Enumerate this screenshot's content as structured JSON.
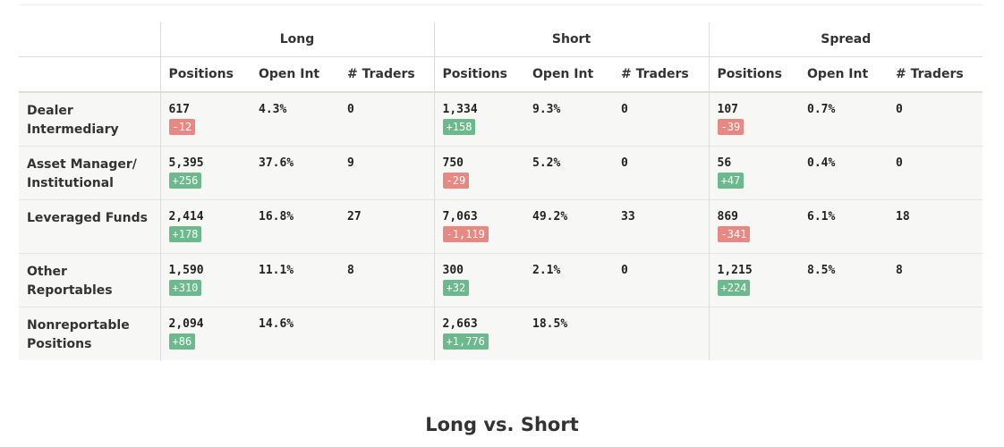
{
  "table": {
    "groups": [
      "Long",
      "Short",
      "Spread"
    ],
    "columns": [
      "Positions",
      "Open Int",
      "# Traders"
    ],
    "rows": [
      {
        "label": "Dealer Intermediary",
        "cells": [
          {
            "positions": "617",
            "change": "-12",
            "open_int": "4.3%",
            "traders": "0"
          },
          {
            "positions": "1,334",
            "change": "+158",
            "open_int": "9.3%",
            "traders": "0"
          },
          {
            "positions": "107",
            "change": "-39",
            "open_int": "0.7%",
            "traders": "0"
          }
        ]
      },
      {
        "label": "Asset Manager/ Institutional",
        "cells": [
          {
            "positions": "5,395",
            "change": "+256",
            "open_int": "37.6%",
            "traders": "9"
          },
          {
            "positions": "750",
            "change": "-29",
            "open_int": "5.2%",
            "traders": "0"
          },
          {
            "positions": "56",
            "change": "+47",
            "open_int": "0.4%",
            "traders": "0"
          }
        ]
      },
      {
        "label": "Leveraged Funds",
        "cells": [
          {
            "positions": "2,414",
            "change": "+178",
            "open_int": "16.8%",
            "traders": "27"
          },
          {
            "positions": "7,063",
            "change": "-1,119",
            "open_int": "49.2%",
            "traders": "33"
          },
          {
            "positions": "869",
            "change": "-341",
            "open_int": "6.1%",
            "traders": "18"
          }
        ]
      },
      {
        "label": "Other Reportables",
        "cells": [
          {
            "positions": "1,590",
            "change": "+310",
            "open_int": "11.1%",
            "traders": "8"
          },
          {
            "positions": "300",
            "change": "+32",
            "open_int": "2.1%",
            "traders": "0"
          },
          {
            "positions": "1,215",
            "change": "+224",
            "open_int": "8.5%",
            "traders": "8"
          }
        ]
      },
      {
        "label": "Nonreportable Positions",
        "cells": [
          {
            "positions": "2,094",
            "change": "+86",
            "open_int": "14.6%"
          },
          {
            "positions": "2,663",
            "change": "+1,776",
            "open_int": "18.5%"
          }
        ]
      }
    ]
  },
  "heading": "Long vs. Short"
}
